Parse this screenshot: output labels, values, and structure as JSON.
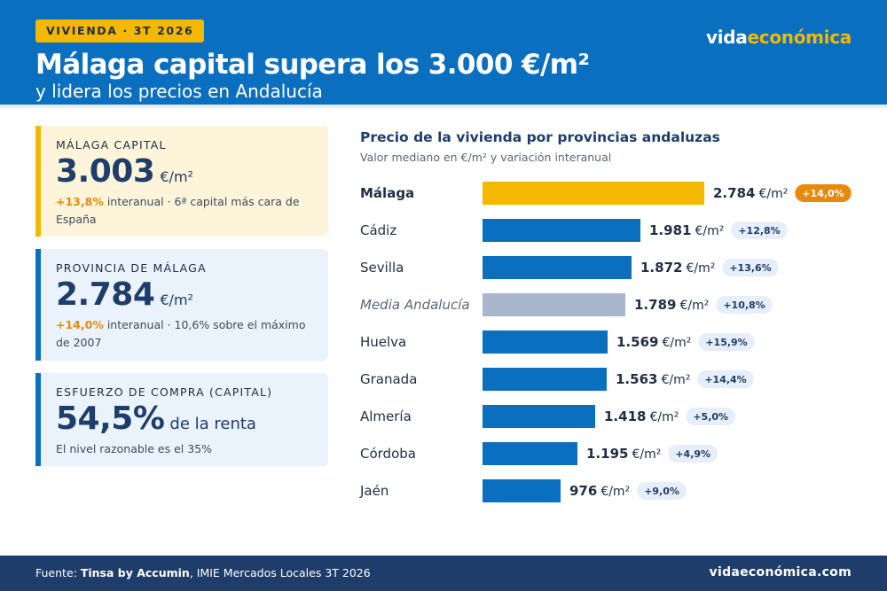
{
  "header": {
    "kicker": "VIVIENDA · 3T 2026",
    "title": "Málaga capital supera los 3.000 €/m²",
    "subtitle": "y lidera los precios en Andalucía",
    "brand_part1": "vida",
    "brand_part2": "económica"
  },
  "cards": [
    {
      "label": "MÁLAGA CAPITAL",
      "value": "3.003",
      "unit": "€/m²",
      "note_highlight": "+13,8%",
      "note_text": " interanual · 6ª capital más cara de España"
    },
    {
      "label": "PROVINCIA DE MÁLAGA",
      "value": "2.784",
      "unit": "€/m²",
      "note_highlight": "+14,0%",
      "note_text": " interanual · 10,6% sobre el máximo de 2007"
    },
    {
      "label": "ESFUERZO DE COMPRA (CAPITAL)",
      "value": "54,5%",
      "unit": "de la renta",
      "note_text": "El nivel razonable es el 35%"
    }
  ],
  "chart": {
    "title": "Precio de la vivienda por provincias andaluzas",
    "subtitle": "Valor mediano en €/m² y variación interanual"
  },
  "chart_data": {
    "type": "bar",
    "orientation": "horizontal",
    "unit": "€/m²",
    "categories": [
      "Málaga",
      "Cádiz",
      "Sevilla",
      "Media Andalucía",
      "Huelva",
      "Granada",
      "Almería",
      "Córdoba",
      "Jaén"
    ],
    "values": [
      2784,
      1981,
      1872,
      1789,
      1569,
      1563,
      1418,
      1195,
      976
    ],
    "value_labels": [
      "2.784",
      "1.981",
      "1.872",
      "1.789",
      "1.569",
      "1.563",
      "1.418",
      "1.195",
      "976"
    ],
    "changes": [
      "+14,0%",
      "+12,8%",
      "+13,6%",
      "+10,8%",
      "+15,9%",
      "+14,4%",
      "+5,0%",
      "+4,9%",
      "+9,0%"
    ],
    "highlight": "Málaga",
    "average": "Media Andalucía",
    "colors": {
      "default": "#0a6fbf",
      "highlight": "#f5b800",
      "average": "#a7b6ca",
      "badge_default_bg": "#e5eef9",
      "badge_default_text": "#1f3d6b",
      "badge_highlight_bg": "#e8890c",
      "badge_highlight_text": "#ffffff"
    },
    "grid": false,
    "legend": "none"
  },
  "footer": {
    "source_prefix": "Fuente: ",
    "source_bold": "Tinsa by Accumin",
    "source_rest": ", IMIE Mercados Locales 3T 2026",
    "brand": "vidaeconómica.com"
  }
}
